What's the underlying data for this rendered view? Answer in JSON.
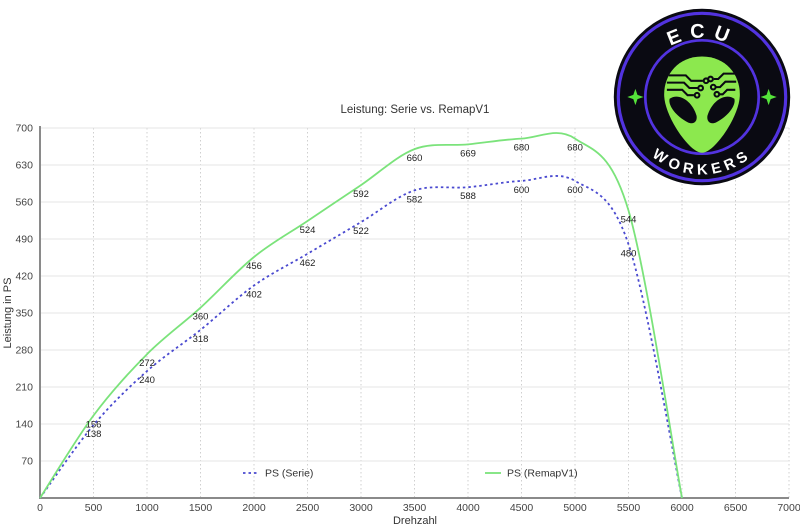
{
  "window": {
    "background": "#ffffff"
  },
  "chart_data": {
    "type": "line",
    "title": "Leistung: Serie vs. RemapV1",
    "xlabel": "Drehzahl",
    "ylabel": "Leistung in PS",
    "xlim": [
      0,
      7000
    ],
    "ylim": [
      0,
      700
    ],
    "x_ticks": [
      0,
      500,
      1000,
      1500,
      2000,
      2500,
      3000,
      3500,
      4000,
      4500,
      5000,
      5500,
      6000,
      6500,
      7000
    ],
    "y_ticks": [
      70,
      140,
      210,
      280,
      350,
      420,
      490,
      560,
      630,
      700
    ],
    "grid": true,
    "legend_position": "bottom-inside",
    "x": [
      0,
      500,
      1000,
      1500,
      2000,
      2500,
      3000,
      3500,
      4000,
      4500,
      5000,
      5500,
      6000
    ],
    "series": [
      {
        "name": "PS (Serie)",
        "color": "#4a4ad0",
        "line_style": "dashed",
        "values": [
          0,
          138,
          240,
          318,
          402,
          462,
          522,
          582,
          588,
          600,
          600,
          480,
          0
        ]
      },
      {
        "name": "PS (RemapV1)",
        "color": "#7be37b",
        "line_style": "solid",
        "values": [
          0,
          156,
          272,
          360,
          456,
          524,
          592,
          660,
          669,
          680,
          680,
          544,
          0
        ]
      }
    ],
    "point_labels_shown_for_x": [
      500,
      1000,
      1500,
      2000,
      2500,
      3000,
      3500,
      4000,
      4500,
      5000,
      5500
    ],
    "colors": {
      "title": "#333333",
      "tick_label": "#444444",
      "axis_line": "#8a8a8a",
      "grid_major": "#e4e4e4",
      "grid_vertical": "#cfcfcf",
      "data_label": "#222222"
    }
  },
  "logo": {
    "text_top": "ECU",
    "text_bottom": "WORKERS",
    "alt": "ECU Workers alien badge",
    "colors": {
      "badge_bg": "#0a0a12",
      "ring": "#5233e0",
      "alien_green": "#8ce84e",
      "star_green": "#55e33a",
      "text": "#ffffff"
    }
  }
}
